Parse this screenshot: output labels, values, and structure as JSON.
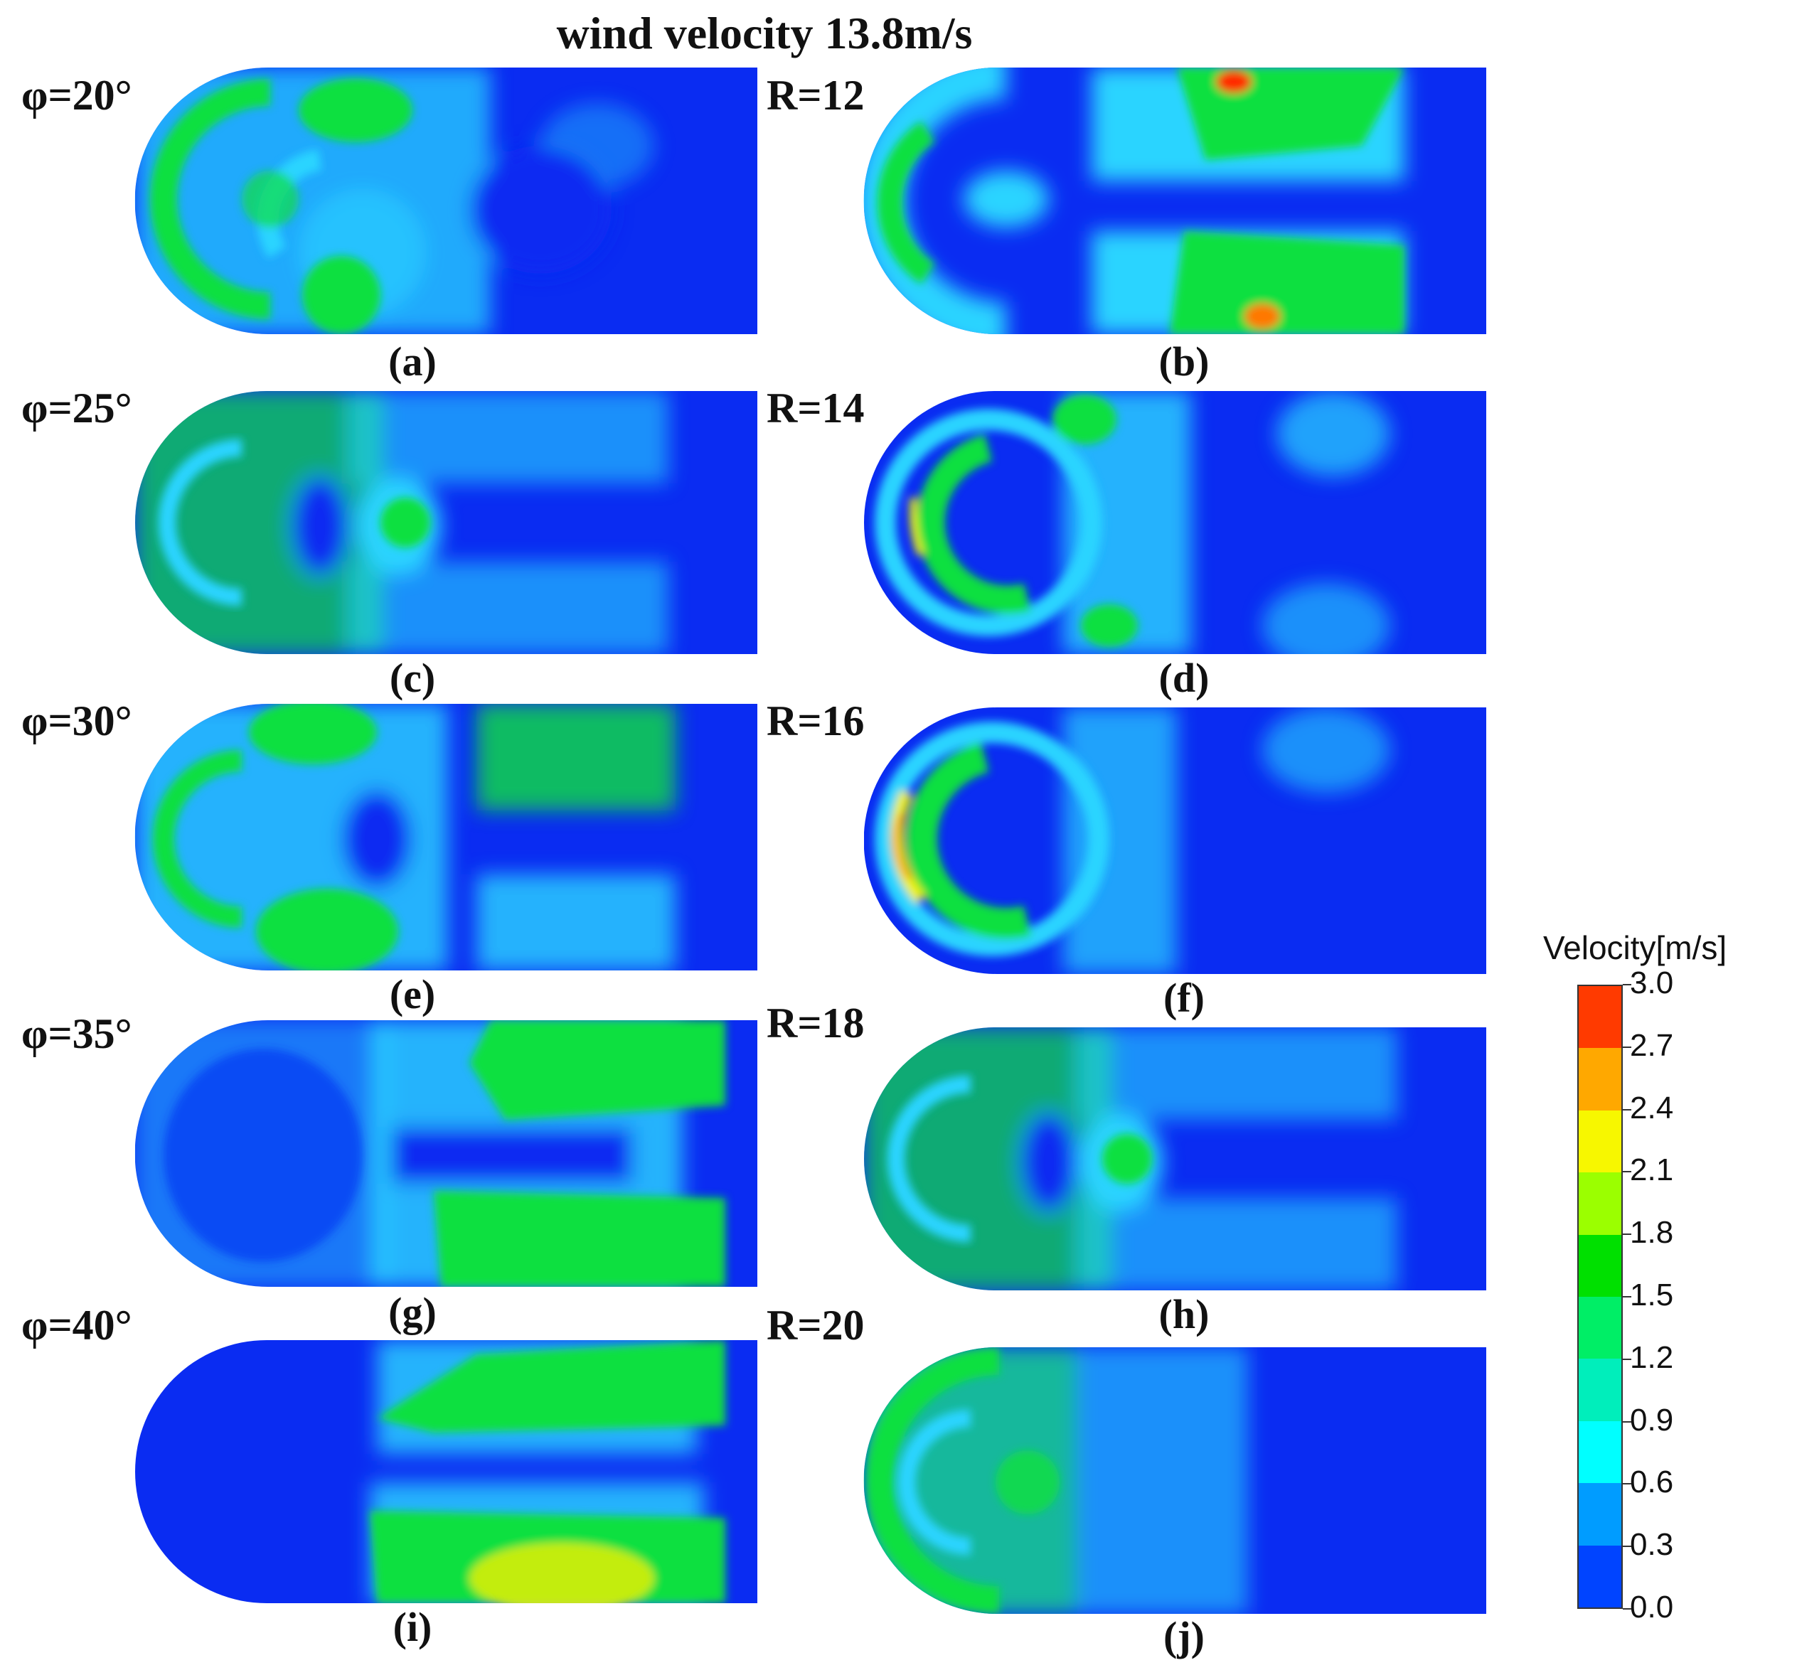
{
  "title": "wind velocity 13.8m/s",
  "row_labels_left": [
    "φ=20°",
    "φ=25°",
    "φ=30°",
    "φ=35°",
    "φ=40°"
  ],
  "row_labels_right": [
    "R=12",
    "R=14",
    "R=16",
    "R=18",
    "R=20"
  ],
  "captions": [
    "(a)",
    "(b)",
    "(c)",
    "(d)",
    "(e)",
    "(f)",
    "(g)",
    "(h)",
    "(i)",
    "(j)"
  ],
  "legend": {
    "title": "Velocity[m/s]",
    "ticks": [
      "3.0",
      "2.7",
      "2.4",
      "2.1",
      "1.8",
      "1.5",
      "1.2",
      "0.9",
      "0.6",
      "0.3",
      "0.0"
    ],
    "colors": [
      "#ff3a00",
      "#ffa800",
      "#f7f700",
      "#9bff00",
      "#00e000",
      "#00ee66",
      "#00eebb",
      "#00ffff",
      "#009cff",
      "#0044ff"
    ]
  },
  "colors": {
    "background": "#0033ee",
    "low": "#0a2cf2",
    "cyan": "#2ad4ff",
    "green": "#10e040",
    "yellow": "#f0f000",
    "orange": "#ff7800",
    "red": "#ff2a00"
  }
}
